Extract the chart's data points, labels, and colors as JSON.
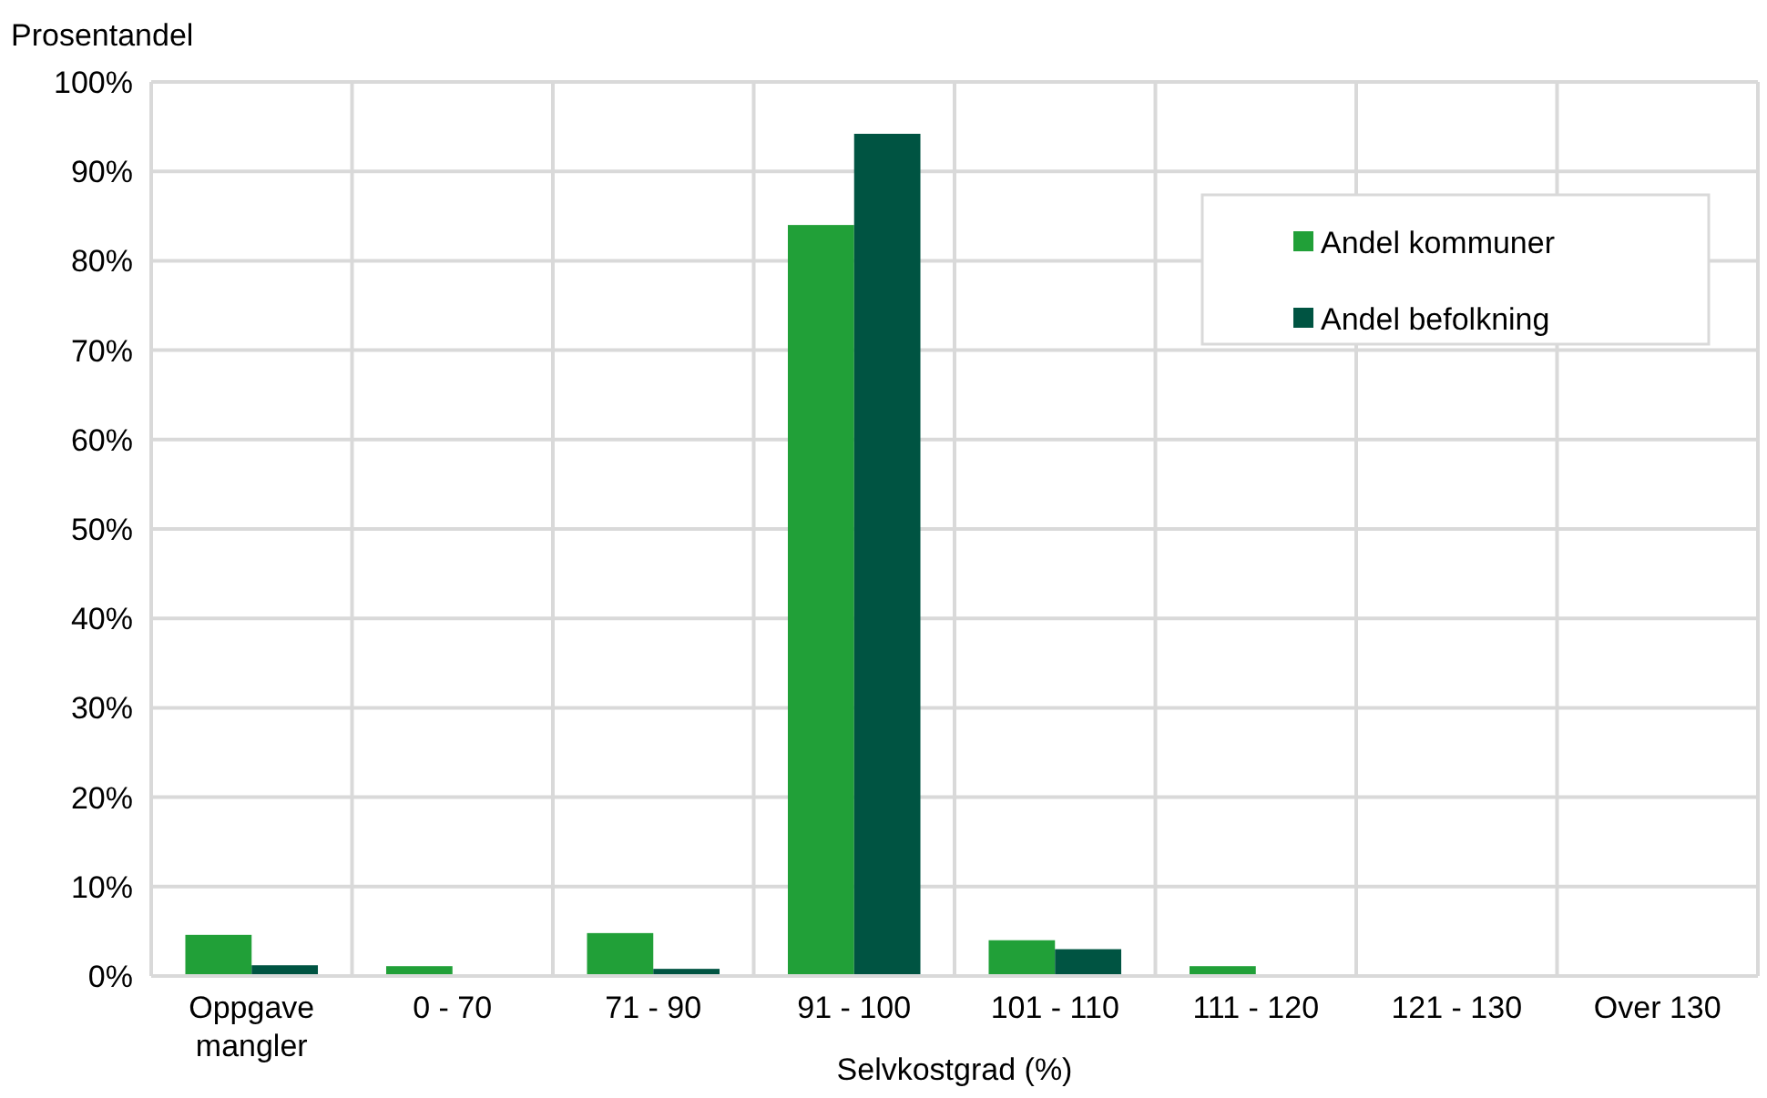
{
  "chart_data": {
    "type": "bar",
    "ylabel": "Prosentandel",
    "xlabel": "Selvkostgrad (%)",
    "categories": [
      "Oppgave mangler",
      "0 - 70",
      "71 - 90",
      "91 - 100",
      "101 - 110",
      "111 - 120",
      "121 - 130",
      "Over 130"
    ],
    "series": [
      {
        "name": "Andel kommuner",
        "color": "#21a038",
        "values": [
          4.6,
          1.1,
          4.8,
          84,
          4.0,
          1.1,
          0,
          0
        ]
      },
      {
        "name": "Andel befolkning",
        "color": "#005442",
        "values": [
          1.2,
          0,
          0.8,
          94.2,
          3.0,
          0,
          0,
          0
        ]
      }
    ],
    "ylim": [
      0,
      100
    ],
    "yticks": [
      {
        "value": 0,
        "label": "0%"
      },
      {
        "value": 10,
        "label": "10%"
      },
      {
        "value": 20,
        "label": "20%"
      },
      {
        "value": 30,
        "label": "30%"
      },
      {
        "value": 40,
        "label": "40%"
      },
      {
        "value": 50,
        "label": "50%"
      },
      {
        "value": 60,
        "label": "60%"
      },
      {
        "value": 70,
        "label": "70%"
      },
      {
        "value": 80,
        "label": "80%"
      },
      {
        "value": 90,
        "label": "90%"
      },
      {
        "value": 100,
        "label": "100%"
      }
    ],
    "grid": true,
    "legend": "top right"
  }
}
